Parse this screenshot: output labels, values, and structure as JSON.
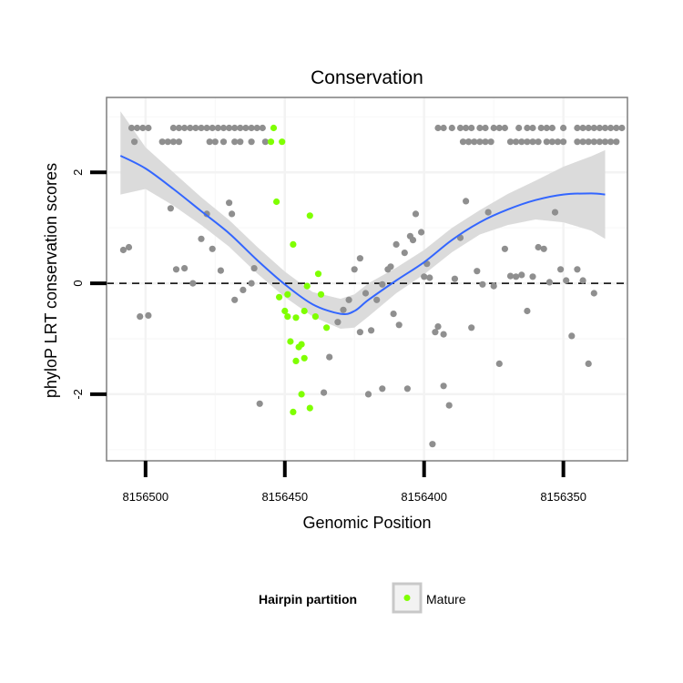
{
  "chart_data": {
    "type": "scatter",
    "title": "Conservation",
    "xlabel": "Genomic Position",
    "ylabel": "phyloP LRT conservation scores",
    "x_ticks": [
      8156500,
      8156450,
      8156400,
      8156350
    ],
    "x_tick_labels": [
      "8156500",
      "8156450",
      "8156400",
      "8156350"
    ],
    "y_ticks": [
      -2,
      0,
      2
    ],
    "y_tick_labels": [
      "-2",
      "0",
      "2"
    ],
    "xlim": [
      8156514,
      8156327
    ],
    "ylim": [
      -3.2,
      3.35
    ],
    "reference_line": {
      "y": 0,
      "style": "dashed"
    },
    "legend": {
      "title": "Hairpin partition",
      "position": "bottom",
      "entries": [
        {
          "label": "Mature",
          "color": "#7FFF00"
        }
      ]
    },
    "colors": {
      "other": "#8f8f8f",
      "mature": "#7FFF00",
      "smooth": "#3366FF",
      "ribbon": "#d9d9d9"
    },
    "series": [
      {
        "name": "Other",
        "points": [
          [
            8156505,
            2.8
          ],
          [
            8156503,
            2.8
          ],
          [
            8156501,
            2.8
          ],
          [
            8156499,
            2.8
          ],
          [
            8156504,
            2.55
          ],
          [
            8156490,
            2.8
          ],
          [
            8156488,
            2.8
          ],
          [
            8156486,
            2.8
          ],
          [
            8156484,
            2.8
          ],
          [
            8156482,
            2.8
          ],
          [
            8156480,
            2.8
          ],
          [
            8156478,
            2.8
          ],
          [
            8156476,
            2.8
          ],
          [
            8156474,
            2.8
          ],
          [
            8156472,
            2.8
          ],
          [
            8156470,
            2.8
          ],
          [
            8156468,
            2.8
          ],
          [
            8156466,
            2.8
          ],
          [
            8156464,
            2.8
          ],
          [
            8156462,
            2.8
          ],
          [
            8156460,
            2.8
          ],
          [
            8156458,
            2.8
          ],
          [
            8156494,
            2.55
          ],
          [
            8156492,
            2.55
          ],
          [
            8156490,
            2.55
          ],
          [
            8156488,
            2.55
          ],
          [
            8156477,
            2.55
          ],
          [
            8156475,
            2.55
          ],
          [
            8156472,
            2.55
          ],
          [
            8156468,
            2.55
          ],
          [
            8156466,
            2.55
          ],
          [
            8156462,
            2.55
          ],
          [
            8156457,
            2.55
          ],
          [
            8156384,
            2.55
          ],
          [
            8156371,
            2.8
          ],
          [
            8156366,
            2.8
          ],
          [
            8156363,
            2.8
          ],
          [
            8156361,
            2.8
          ],
          [
            8156358,
            2.8
          ],
          [
            8156356,
            2.8
          ],
          [
            8156354,
            2.8
          ],
          [
            8156350,
            2.8
          ],
          [
            8156345,
            2.8
          ],
          [
            8156343,
            2.8
          ],
          [
            8156341,
            2.8
          ],
          [
            8156339,
            2.8
          ],
          [
            8156337,
            2.8
          ],
          [
            8156335,
            2.8
          ],
          [
            8156333,
            2.8
          ],
          [
            8156331,
            2.8
          ],
          [
            8156329,
            2.8
          ],
          [
            8156395,
            2.8
          ],
          [
            8156393,
            2.8
          ],
          [
            8156390,
            2.8
          ],
          [
            8156387,
            2.8
          ],
          [
            8156385,
            2.8
          ],
          [
            8156383,
            2.8
          ],
          [
            8156380,
            2.8
          ],
          [
            8156378,
            2.8
          ],
          [
            8156375,
            2.8
          ],
          [
            8156373,
            2.8
          ],
          [
            8156369,
            2.55
          ],
          [
            8156367,
            2.55
          ],
          [
            8156365,
            2.55
          ],
          [
            8156363,
            2.55
          ],
          [
            8156361,
            2.55
          ],
          [
            8156359,
            2.55
          ],
          [
            8156356,
            2.55
          ],
          [
            8156354,
            2.55
          ],
          [
            8156352,
            2.55
          ],
          [
            8156350,
            2.55
          ],
          [
            8156345,
            2.55
          ],
          [
            8156343,
            2.55
          ],
          [
            8156341,
            2.55
          ],
          [
            8156339,
            2.55
          ],
          [
            8156337,
            2.55
          ],
          [
            8156335,
            2.55
          ],
          [
            8156333,
            2.55
          ],
          [
            8156331,
            2.55
          ],
          [
            8156386,
            2.55
          ],
          [
            8156384,
            2.55
          ],
          [
            8156382,
            2.55
          ],
          [
            8156380,
            2.55
          ],
          [
            8156378,
            2.55
          ],
          [
            8156376,
            2.55
          ],
          [
            8156508,
            0.6
          ],
          [
            8156506,
            0.65
          ],
          [
            8156502,
            -0.6
          ],
          [
            8156499,
            -0.58
          ],
          [
            8156491,
            1.35
          ],
          [
            8156489,
            0.25
          ],
          [
            8156486,
            0.27
          ],
          [
            8156483,
            0.0
          ],
          [
            8156480,
            0.8
          ],
          [
            8156478,
            1.25
          ],
          [
            8156476,
            0.62
          ],
          [
            8156473,
            0.23
          ],
          [
            8156470,
            1.45
          ],
          [
            8156469,
            1.25
          ],
          [
            8156468,
            -0.3
          ],
          [
            8156465,
            -0.12
          ],
          [
            8156462,
            0.0
          ],
          [
            8156461,
            0.27
          ],
          [
            8156459,
            -2.17
          ],
          [
            8156436,
            -1.97
          ],
          [
            8156434,
            -1.33
          ],
          [
            8156431,
            -0.7
          ],
          [
            8156429,
            -0.48
          ],
          [
            8156427,
            -0.3
          ],
          [
            8156425,
            0.25
          ],
          [
            8156423,
            0.45
          ],
          [
            8156421,
            -0.18
          ],
          [
            8156419,
            -0.85
          ],
          [
            8156417,
            -0.3
          ],
          [
            8156415,
            -0.02
          ],
          [
            8156413,
            0.25
          ],
          [
            8156411,
            -0.55
          ],
          [
            8156409,
            -0.75
          ],
          [
            8156407,
            0.55
          ],
          [
            8156405,
            0.85
          ],
          [
            8156403,
            1.25
          ],
          [
            8156401,
            0.92
          ],
          [
            8156399,
            0.35
          ],
          [
            8156397,
            -2.9
          ],
          [
            8156395,
            -0.78
          ],
          [
            8156393,
            -1.85
          ],
          [
            8156391,
            -2.2
          ],
          [
            8156389,
            0.08
          ],
          [
            8156387,
            0.82
          ],
          [
            8156385,
            1.48
          ],
          [
            8156383,
            -0.8
          ],
          [
            8156381,
            0.22
          ],
          [
            8156379,
            -0.02
          ],
          [
            8156377,
            1.28
          ],
          [
            8156375,
            -0.05
          ],
          [
            8156373,
            -1.45
          ],
          [
            8156371,
            0.62
          ],
          [
            8156369,
            0.13
          ],
          [
            8156367,
            0.12
          ],
          [
            8156365,
            0.15
          ],
          [
            8156363,
            -0.5
          ],
          [
            8156361,
            0.12
          ],
          [
            8156359,
            0.65
          ],
          [
            8156357,
            0.62
          ],
          [
            8156355,
            0.02
          ],
          [
            8156353,
            1.28
          ],
          [
            8156351,
            0.25
          ],
          [
            8156349,
            0.05
          ],
          [
            8156347,
            -0.95
          ],
          [
            8156345,
            0.25
          ],
          [
            8156343,
            0.05
          ],
          [
            8156341,
            -1.45
          ],
          [
            8156339,
            -0.18
          ],
          [
            8156423,
            -0.88
          ],
          [
            8156420,
            -2.0
          ],
          [
            8156415,
            -1.9
          ],
          [
            8156412,
            0.3
          ],
          [
            8156410,
            0.7
          ],
          [
            8156406,
            -1.9
          ],
          [
            8156404,
            0.78
          ],
          [
            8156400,
            0.12
          ],
          [
            8156398,
            0.1
          ],
          [
            8156396,
            -0.88
          ],
          [
            8156393,
            -0.92
          ]
        ]
      },
      {
        "name": "Mature",
        "points": [
          [
            8156454,
            2.8
          ],
          [
            8156455,
            2.55
          ],
          [
            8156451,
            2.55
          ],
          [
            8156453,
            1.47
          ],
          [
            8156441,
            1.22
          ],
          [
            8156447,
            0.7
          ],
          [
            8156438,
            0.17
          ],
          [
            8156437,
            -0.2
          ],
          [
            8156442,
            -0.05
          ],
          [
            8156452,
            -0.25
          ],
          [
            8156450,
            -0.5
          ],
          [
            8156449,
            -0.6
          ],
          [
            8156446,
            -0.62
          ],
          [
            8156443,
            -0.5
          ],
          [
            8156439,
            -0.6
          ],
          [
            8156435,
            -0.8
          ],
          [
            8156448,
            -1.05
          ],
          [
            8156444,
            -1.1
          ],
          [
            8156445,
            -1.15
          ],
          [
            8156446,
            -1.4
          ],
          [
            8156443,
            -1.35
          ],
          [
            8156447,
            -2.32
          ],
          [
            8156444,
            -2.0
          ],
          [
            8156441,
            -2.25
          ],
          [
            8156449,
            -0.2
          ]
        ]
      }
    ],
    "smooth_curve": {
      "method": "loess",
      "x": [
        8156509,
        8156500,
        8156490,
        8156480,
        8156470,
        8156460,
        8156450,
        8156440,
        8156430,
        8156425,
        8156420,
        8156410,
        8156400,
        8156390,
        8156380,
        8156370,
        8156360,
        8156350,
        8156340,
        8156335
      ],
      "y": [
        2.3,
        2.07,
        1.7,
        1.3,
        0.9,
        0.42,
        -0.02,
        -0.38,
        -0.55,
        -0.5,
        -0.3,
        0.05,
        0.38,
        0.78,
        1.1,
        1.33,
        1.5,
        1.6,
        1.62,
        1.6
      ],
      "ribbon_lower": [
        1.6,
        1.7,
        1.4,
        1.05,
        0.66,
        0.18,
        -0.25,
        -0.6,
        -0.82,
        -0.8,
        -0.6,
        -0.18,
        0.16,
        0.56,
        0.88,
        1.05,
        1.15,
        1.1,
        0.95,
        0.8
      ],
      "ribbon_upper": [
        3.1,
        2.45,
        2.0,
        1.55,
        1.14,
        0.66,
        0.21,
        -0.16,
        -0.28,
        -0.2,
        -0.0,
        0.28,
        0.6,
        1.0,
        1.32,
        1.61,
        1.85,
        2.1,
        2.29,
        2.4
      ]
    }
  }
}
